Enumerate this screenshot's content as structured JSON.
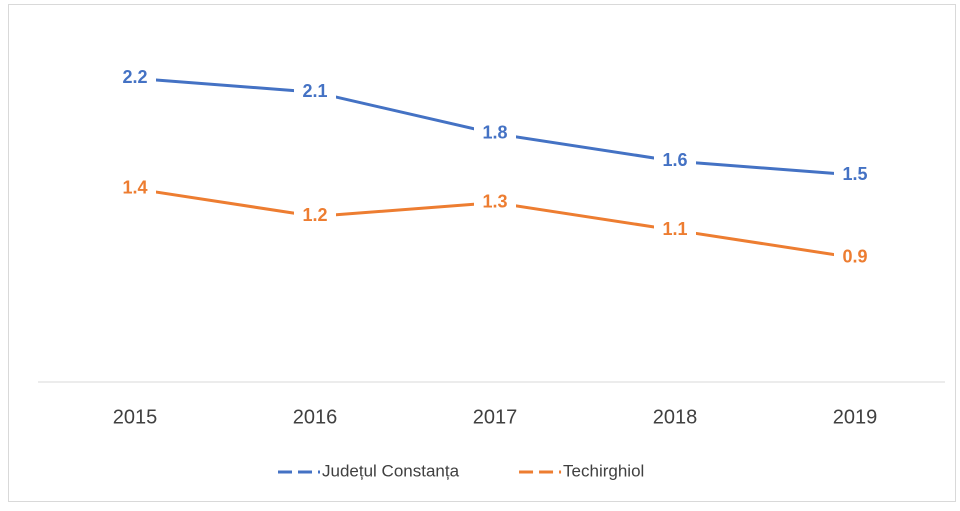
{
  "chart_data": {
    "type": "line",
    "categories": [
      "2015",
      "2016",
      "2017",
      "2018",
      "2019"
    ],
    "series": [
      {
        "name": "Județul Constanța",
        "color": "#4472c4",
        "values": [
          2.2,
          2.1,
          1.8,
          1.6,
          1.5
        ]
      },
      {
        "name": "Techirghiol",
        "color": "#ed7d31",
        "values": [
          1.4,
          1.2,
          1.3,
          1.1,
          0.9
        ]
      }
    ],
    "ylim": [
      0,
      2.5
    ],
    "data_labels": true,
    "legend": "bottom"
  }
}
